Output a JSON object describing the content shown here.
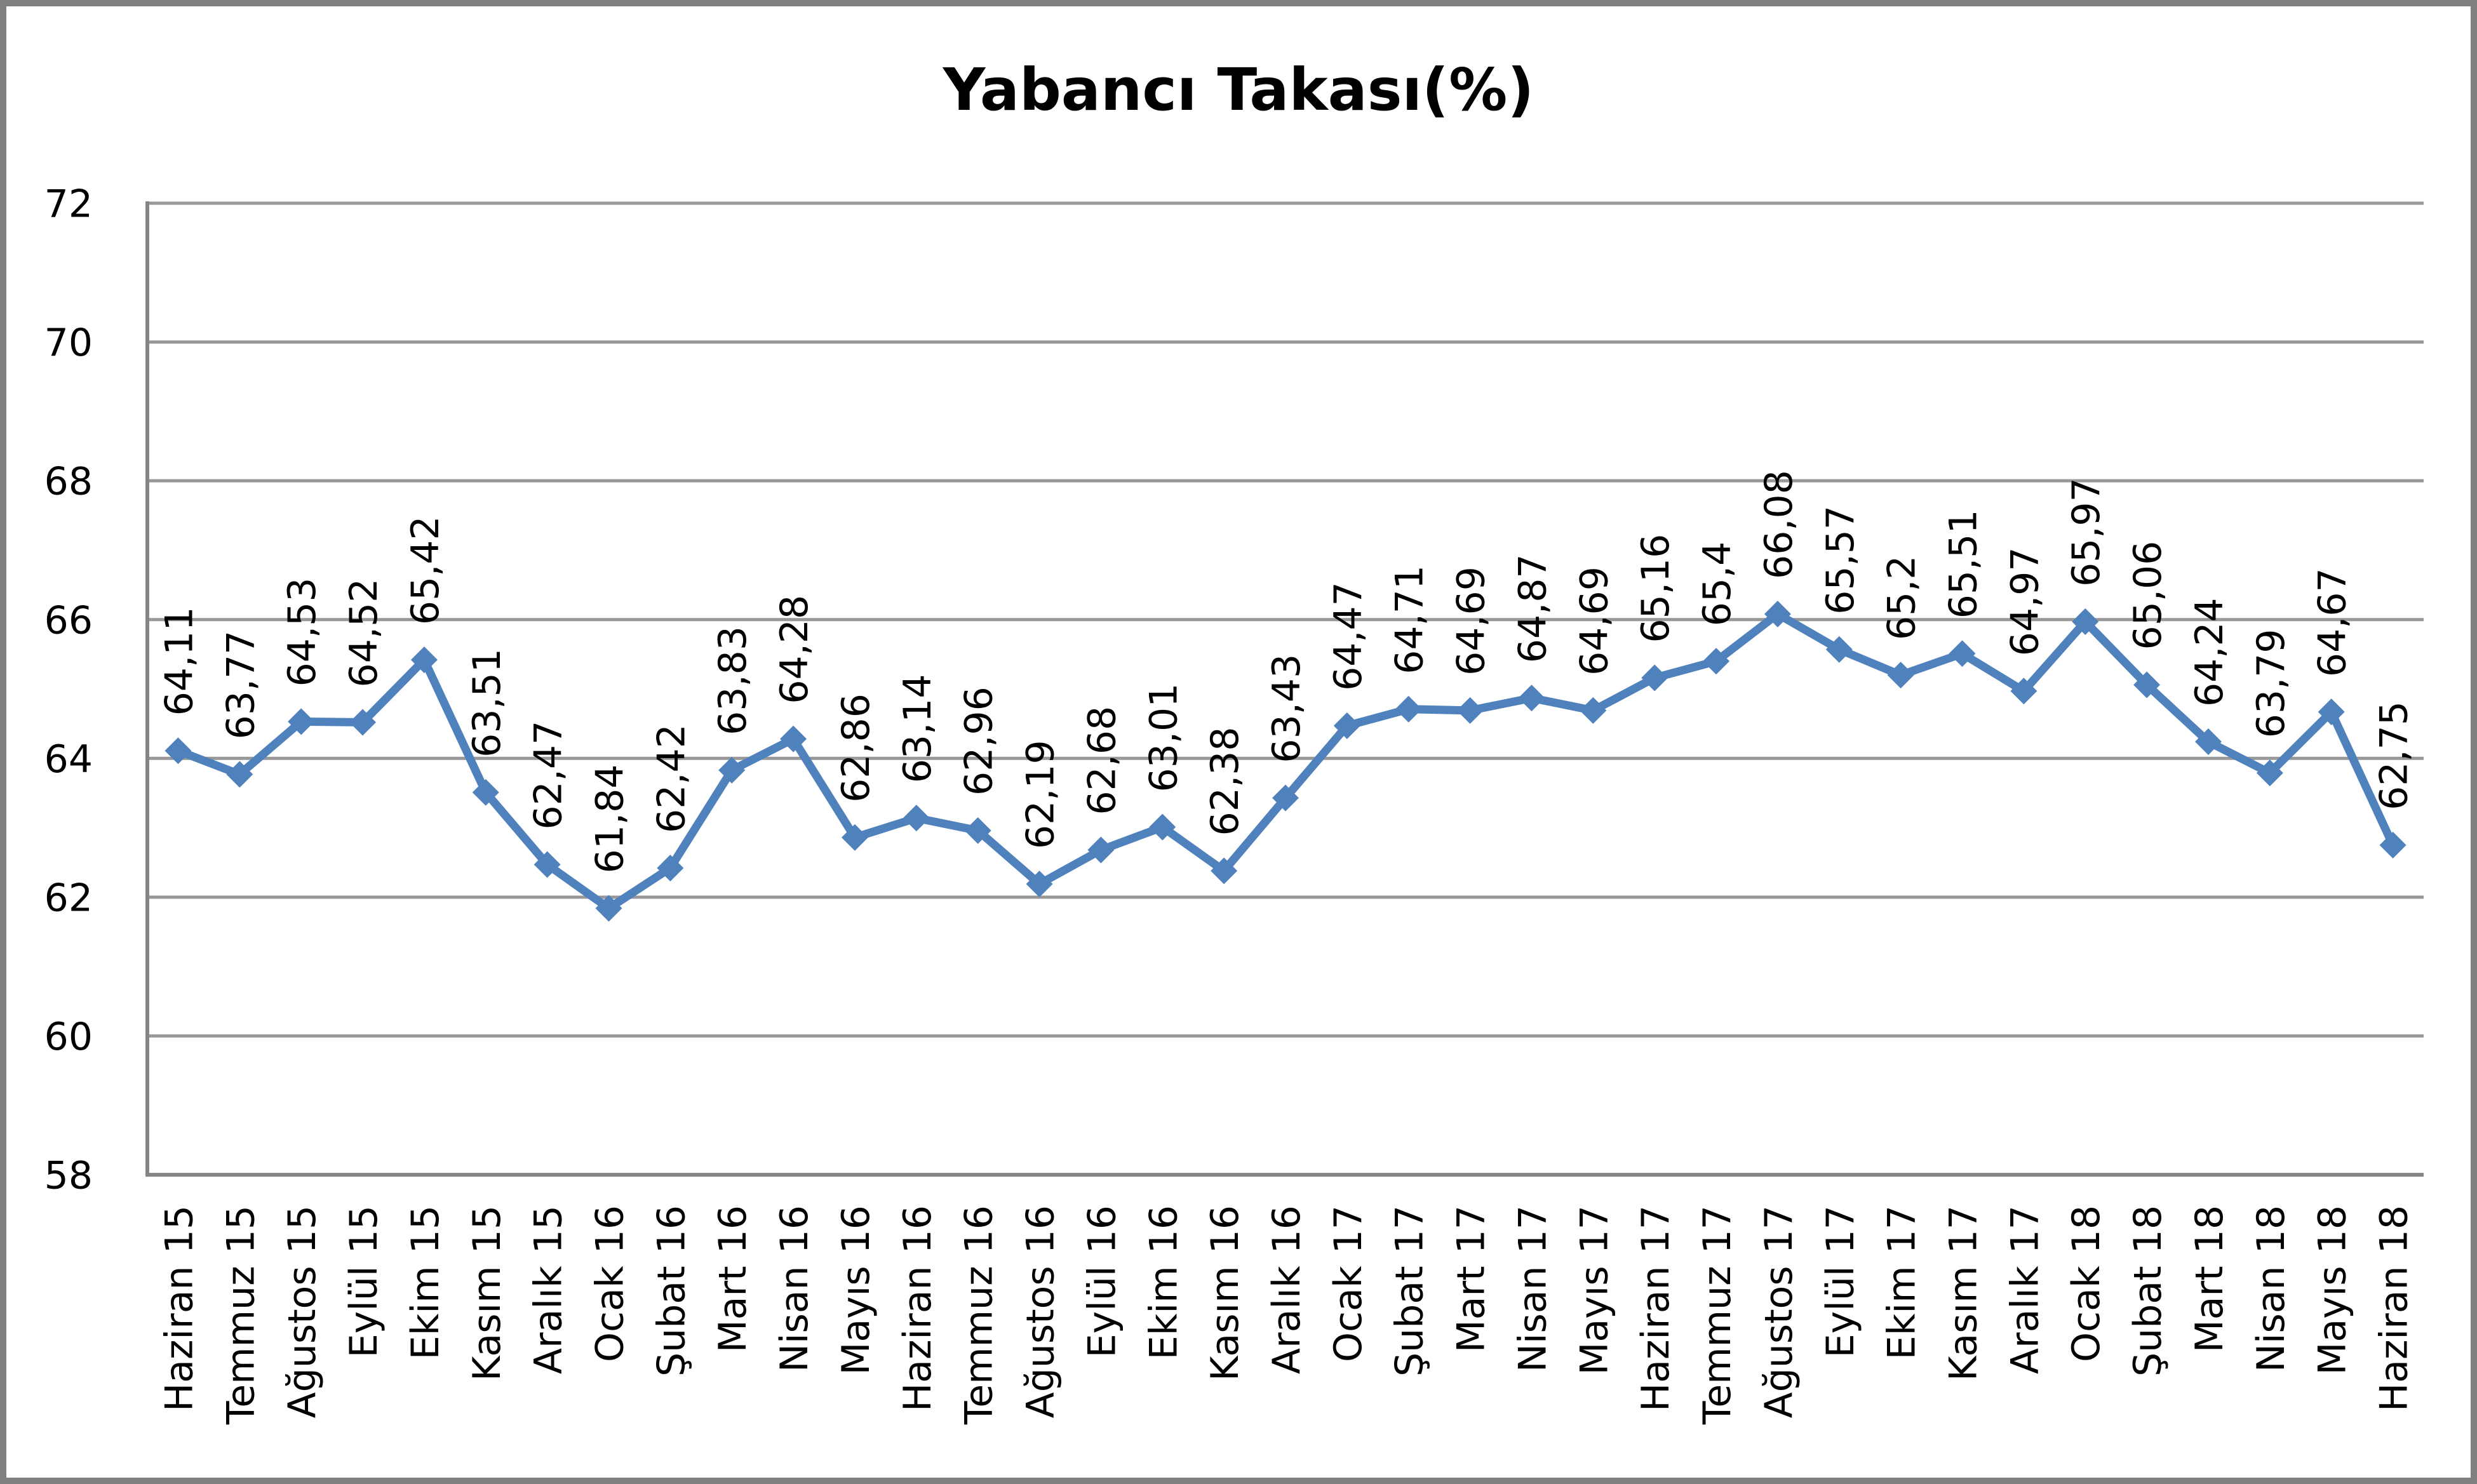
{
  "chart_data": {
    "type": "line",
    "title": "Yabancı Takası(%)",
    "categories": [
      "Haziran 15",
      "Temmuz 15",
      "Ağustos 15",
      "Eylül 15",
      "Ekim 15",
      "Kasım 15",
      "Aralık 15",
      "Ocak 16",
      "Şubat 16",
      "Mart 16",
      "Nisan 16",
      "Mayıs 16",
      "Haziran 16",
      "Temmuz 16",
      "Ağustos 16",
      "Eylül 16",
      "Ekim 16",
      "Kasım 16",
      "Aralık 16",
      "Ocak 17",
      "Şubat 17",
      "Mart 17",
      "Nisan 17",
      "Mayıs 17",
      "Haziran 17",
      "Temmuz 17",
      "Ağustos 17",
      "Eylül 17",
      "Ekim 17",
      "Kasım 17",
      "Aralık 17",
      "Ocak 18",
      "Şubat 18",
      "Mart 18",
      "Nisan 18",
      "Mayıs 18",
      "Haziran 18"
    ],
    "series": [
      {
        "name": "Yabancı Takası(%)",
        "values": [
          64.11,
          63.77,
          64.53,
          64.52,
          65.42,
          63.51,
          62.47,
          61.84,
          62.42,
          63.83,
          64.28,
          62.86,
          63.14,
          62.96,
          62.19,
          62.68,
          63.01,
          62.38,
          63.43,
          64.47,
          64.71,
          64.69,
          64.87,
          64.69,
          65.16,
          65.4,
          66.08,
          65.57,
          65.2,
          65.51,
          64.97,
          65.97,
          65.06,
          64.24,
          63.79,
          64.67,
          62.75
        ],
        "data_labels": [
          "64,11",
          "63,77",
          "64,53",
          "64,52",
          "65,42",
          "63,51",
          "62,47",
          "61,84",
          "62,42",
          "63,83",
          "64,28",
          "62,86",
          "63,14",
          "62,96",
          "62,19",
          "62,68",
          "63,01",
          "62,38",
          "63,43",
          "64,47",
          "64,71",
          "64,69",
          "64,87",
          "64,69",
          "65,16",
          "65,4",
          "66,08",
          "65,57",
          "65,2",
          "65,51",
          "64,97",
          "65,97",
          "65,06",
          "64,24",
          "63,79",
          "64,67",
          "62,75"
        ]
      }
    ],
    "xlabel": "",
    "ylabel": "",
    "ylim": [
      58,
      72
    ],
    "yticks": [
      58,
      60,
      62,
      64,
      66,
      68,
      70,
      72
    ],
    "grid": true,
    "legend_position": "none",
    "colors": {
      "line": "#4F81BD",
      "marker": "#4F81BD",
      "gridline": "#989898",
      "axis": "#868686",
      "frame_border": "#7f7f7f",
      "text": "#000000",
      "background": "#ffffff"
    }
  }
}
